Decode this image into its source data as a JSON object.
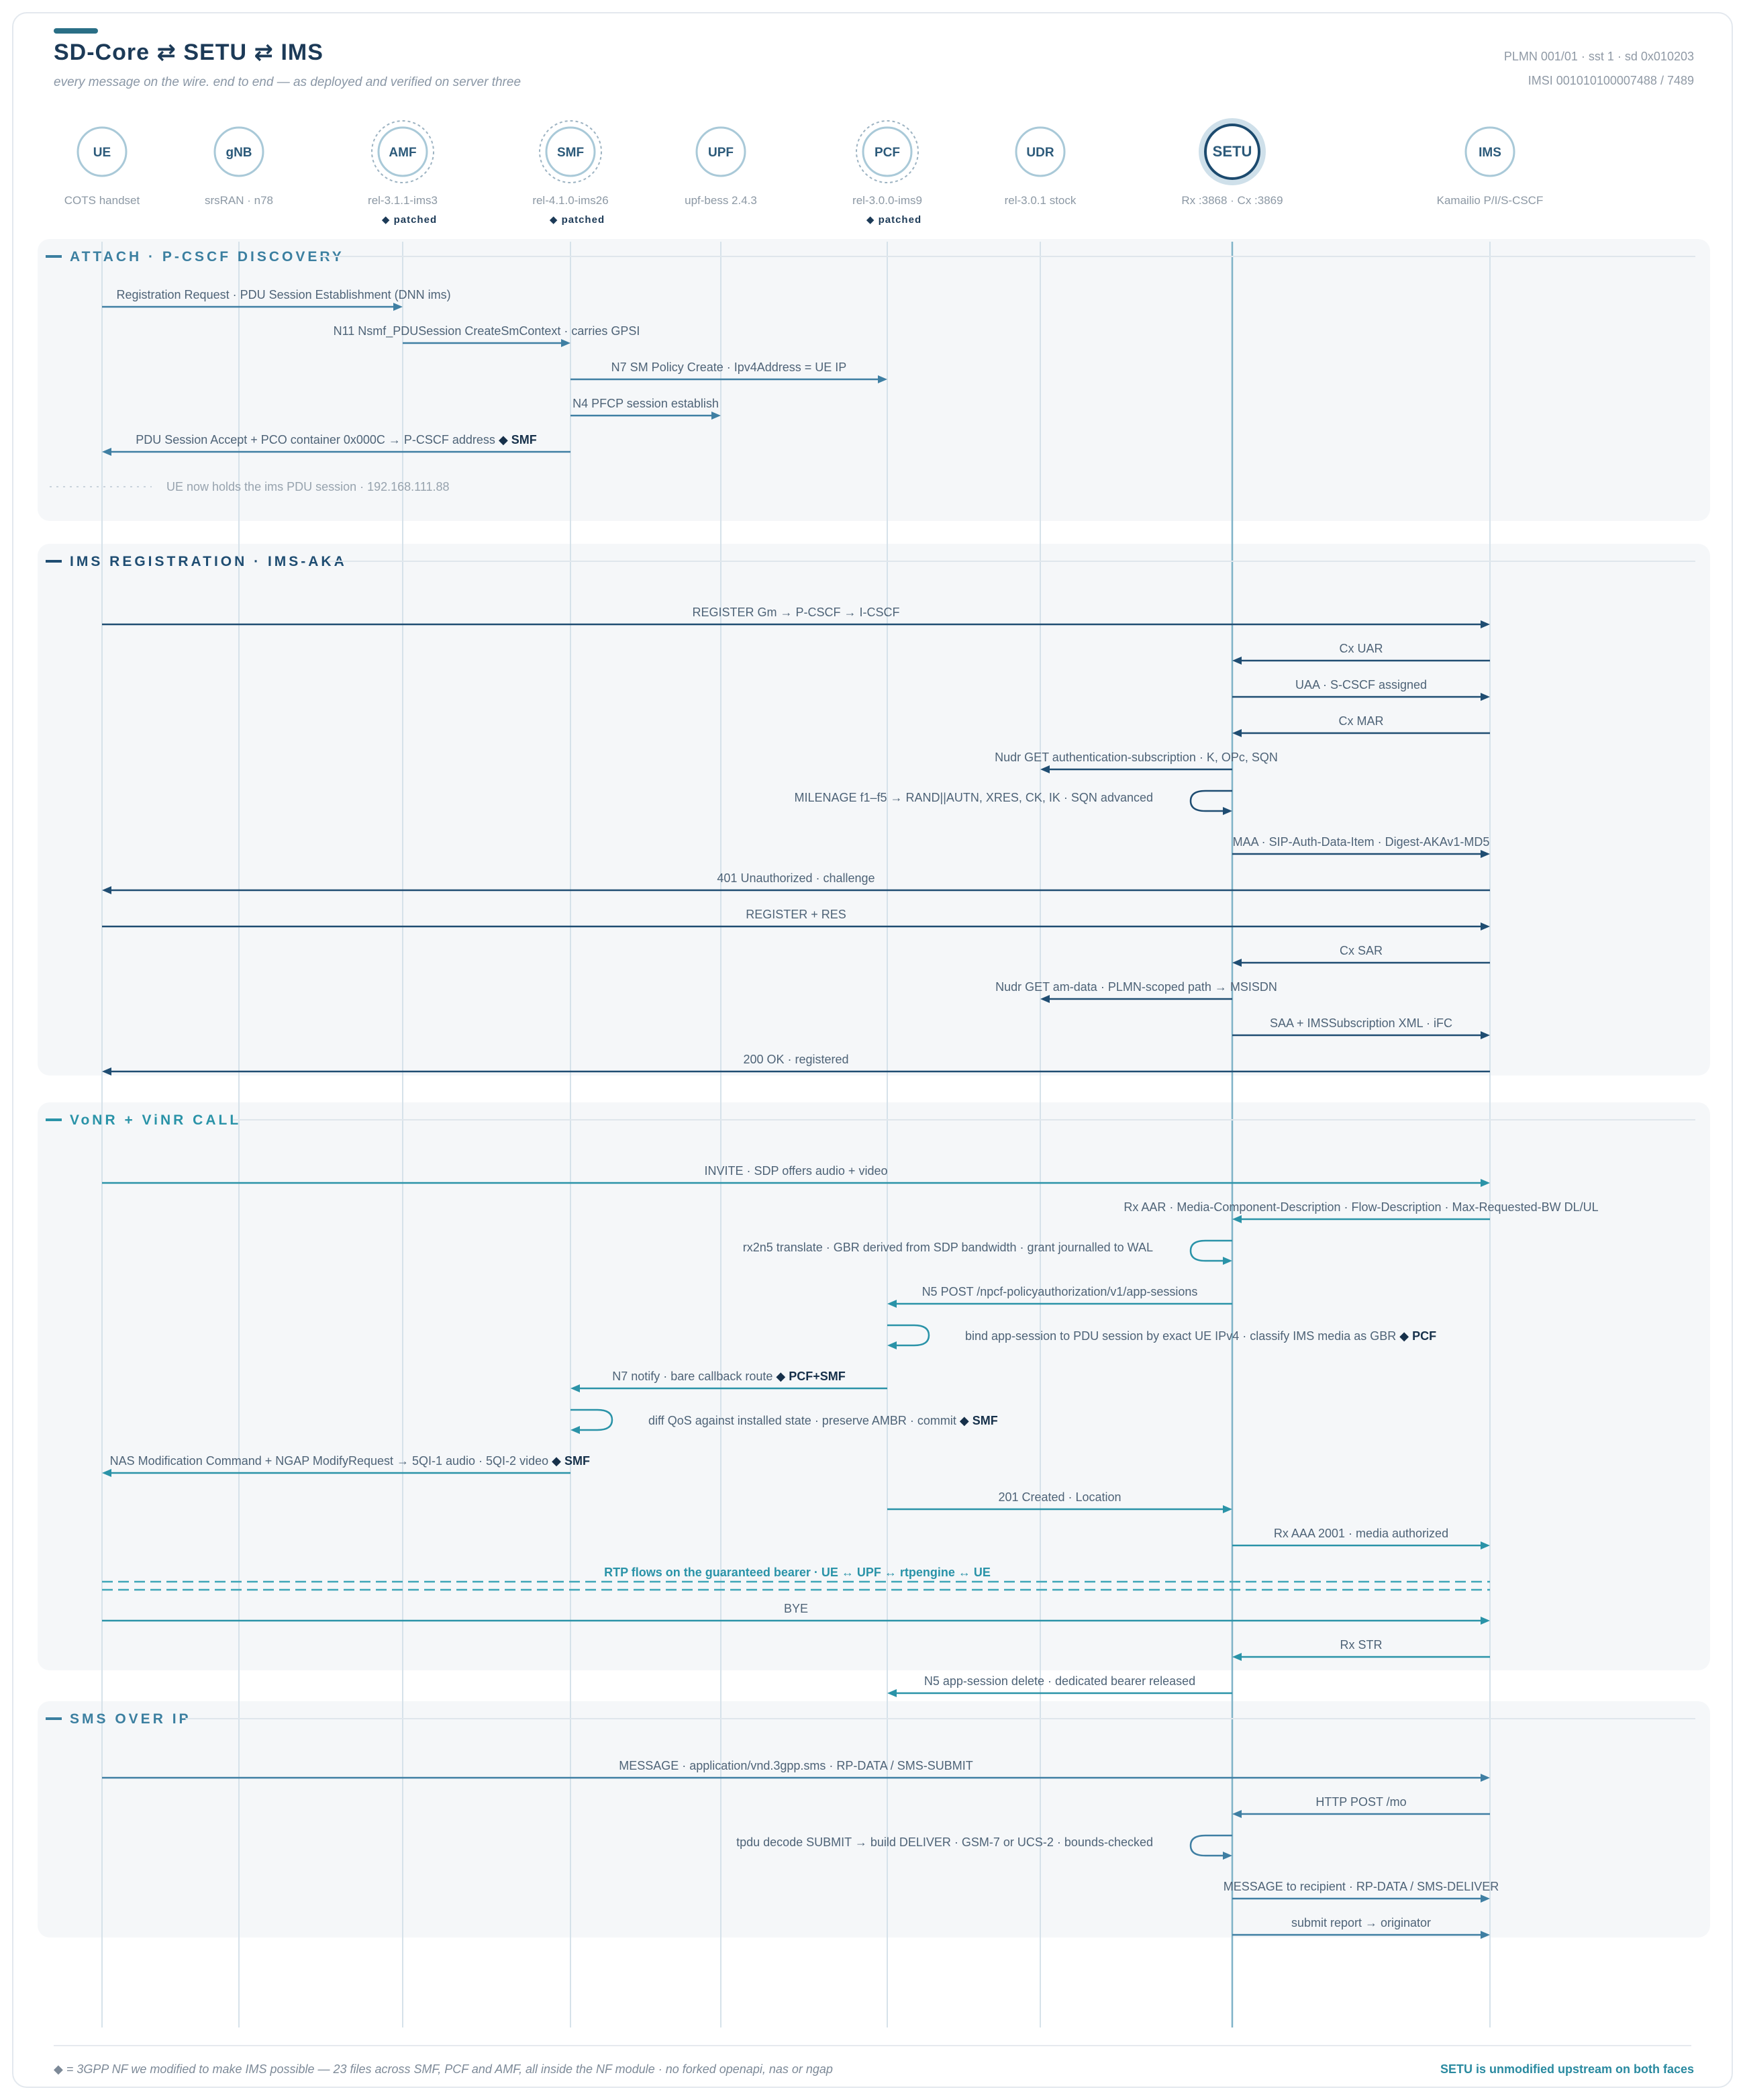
{
  "header": {
    "title": "SD-Core ⇄ SETU ⇄ IMS",
    "subtitle": "every message on the wire. end to end — as deployed and verified on server three",
    "plmn": "PLMN 001/01 · sst 1 · sd 0x010203",
    "imsi": "IMSI 001010100007488 / 7489"
  },
  "nodes": [
    {
      "id": "ue",
      "label": "UE",
      "sub": "COTS handset"
    },
    {
      "id": "gnb",
      "label": "gNB",
      "sub": "srsRAN · n78"
    },
    {
      "id": "amf",
      "label": "AMF",
      "sub": "rel-3.1.1-ims3",
      "patched": "◆ patched"
    },
    {
      "id": "smf",
      "label": "SMF",
      "sub": "rel-4.1.0-ims26",
      "patched": "◆ patched"
    },
    {
      "id": "upf",
      "label": "UPF",
      "sub": "upf-bess 2.4.3"
    },
    {
      "id": "pcf",
      "label": "PCF",
      "sub": "rel-3.0.0-ims9",
      "patched": "◆ patched"
    },
    {
      "id": "udr",
      "label": "UDR",
      "sub": "rel-3.0.1 stock"
    },
    {
      "id": "setu",
      "label": "SETU",
      "sub": "Rx :3868 · Cx :3869"
    },
    {
      "id": "ims",
      "label": "IMS",
      "sub": "Kamailio P/I/S-CSCF"
    }
  ],
  "colors": {
    "dark": "#1c4a6e",
    "mid": "#3f86a8",
    "teal": "#2a93a8",
    "panel": "#f5f7f9",
    "lifeline": "#d6e2ea"
  },
  "sections": [
    {
      "title": "ATTACH · P-CSCF DISCOVERY",
      "color": "#3b7fa0",
      "messages": [
        {
          "from": "ue",
          "to": "amf",
          "label": "Registration Request · PDU Session Establishment (DNN ims)"
        },
        {
          "from": "amf",
          "to": "smf",
          "label": "N11 Nsmf_PDUSession CreateSmContext · carries GPSI"
        },
        {
          "from": "smf",
          "to": "pcf",
          "label": "N7 SM Policy Create · Ipv4Address = UE IP"
        },
        {
          "from": "smf",
          "to": "upf",
          "label": "N4 PFCP session establish"
        },
        {
          "from": "smf",
          "to": "ue",
          "label": "PDU Session Accept + PCO container 0x000C → P-CSCF address",
          "mark": "◆ SMF"
        },
        {
          "note": true,
          "label": "UE now holds the ims PDU session · 192.168.111.88"
        }
      ]
    },
    {
      "title": "IMS REGISTRATION · IMS-AKA",
      "color": "#1f4d72",
      "messages": [
        {
          "from": "ue",
          "to": "ims",
          "label": "REGISTER Gm → P-CSCF → I-CSCF"
        },
        {
          "from": "ims",
          "to": "setu",
          "label": "Cx UAR"
        },
        {
          "from": "setu",
          "to": "ims",
          "label": "UAA · S-CSCF assigned"
        },
        {
          "from": "ims",
          "to": "setu",
          "label": "Cx MAR"
        },
        {
          "from": "setu",
          "to": "udr",
          "label": "Nudr GET authentication-subscription · K, OPc, SQN"
        },
        {
          "self": "setu",
          "label": "MILENAGE f1–f5 → RAND||AUTN, XRES, CK, IK · SQN advanced"
        },
        {
          "from": "setu",
          "to": "ims",
          "label": "MAA · SIP-Auth-Data-Item · Digest-AKAv1-MD5"
        },
        {
          "from": "ims",
          "to": "ue",
          "label": "401 Unauthorized · challenge"
        },
        {
          "from": "ue",
          "to": "ims",
          "label": "REGISTER + RES"
        },
        {
          "from": "ims",
          "to": "setu",
          "label": "Cx SAR"
        },
        {
          "from": "setu",
          "to": "udr",
          "label": "Nudr GET am-data · PLMN-scoped path → MSISDN"
        },
        {
          "from": "setu",
          "to": "ims",
          "label": "SAA + IMSSubscription XML · iFC"
        },
        {
          "from": "ims",
          "to": "ue",
          "label": "200 OK · registered"
        }
      ]
    },
    {
      "title": "VoNR + ViNR CALL",
      "color": "#2a93a8",
      "messages": [
        {
          "from": "ue",
          "to": "ims",
          "label": "INVITE · SDP offers audio + video"
        },
        {
          "from": "ims",
          "to": "setu",
          "label": "Rx AAR · Media-Component-Description · Flow-Description · Max-Requested-BW DL/UL"
        },
        {
          "self": "setu",
          "label": "rx2n5 translate · GBR derived from SDP bandwidth · grant journalled to WAL"
        },
        {
          "from": "setu",
          "to": "pcf",
          "label": "N5 POST /npcf-policyauthorization/v1/app-sessions"
        },
        {
          "self": "pcf",
          "label": "bind app-session to PDU session by exact UE IPv4 · classify IMS media as GBR",
          "mark": "◆ PCF",
          "side": "right"
        },
        {
          "from": "pcf",
          "to": "smf",
          "label": "N7 notify · bare callback route",
          "mark": "◆ PCF+SMF"
        },
        {
          "self": "smf",
          "label": "diff QoS against installed state · preserve AMBR · commit",
          "mark": "◆ SMF",
          "side": "right"
        },
        {
          "from": "smf",
          "to": "ue",
          "label": "NAS Modification Command + NGAP ModifyRequest → 5QI-1 audio · 5QI-2 video",
          "mark": "◆ SMF"
        },
        {
          "from": "pcf",
          "to": "setu",
          "label": "201 Created · Location"
        },
        {
          "from": "setu",
          "to": "ims",
          "label": "Rx AAA 2001 · media authorized"
        },
        {
          "rtp": true,
          "label": "RTP flows on the guaranteed bearer · UE ↔ UPF ↔ rtpengine ↔ UE"
        },
        {
          "from": "ue",
          "to": "ims",
          "label": "BYE"
        },
        {
          "from": "ims",
          "to": "setu",
          "label": "Rx STR"
        },
        {
          "from": "setu",
          "to": "pcf",
          "label": "N5 app-session delete · dedicated bearer released"
        }
      ]
    },
    {
      "title": "SMS OVER IP",
      "color": "#3b7fa0",
      "messages": [
        {
          "from": "ue",
          "to": "ims",
          "label": "MESSAGE · application/vnd.3gpp.sms · RP-DATA / SMS-SUBMIT"
        },
        {
          "from": "ims",
          "to": "setu",
          "label": "HTTP POST /mo"
        },
        {
          "self": "setu",
          "label": "tpdu decode SUBMIT → build DELIVER · GSM-7 or UCS-2 · bounds-checked"
        },
        {
          "from": "setu",
          "to": "ims",
          "label": "MESSAGE to recipient · RP-DATA / SMS-DELIVER"
        },
        {
          "from": "setu",
          "to": "ims",
          "label": "submit report → originator"
        }
      ]
    }
  ],
  "footer": {
    "legend": "◆ = 3GPP NF we modified to make IMS possible — 23 files across SMF, PCF and AMF, all inside the NF module · no forked openapi, nas or ngap",
    "right": "SETU is unmodified upstream on both faces"
  }
}
